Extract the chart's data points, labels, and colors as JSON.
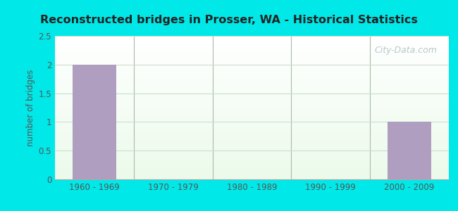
{
  "title": "Reconstructed bridges in Prosser, WA - Historical Statistics",
  "categories": [
    "1960 - 1969",
    "1970 - 1979",
    "1980 - 1989",
    "1990 - 1999",
    "2000 - 2009"
  ],
  "values": [
    2,
    0,
    0,
    0,
    1
  ],
  "bar_color": "#b09ec0",
  "ylabel": "number of bridges",
  "ylim": [
    0,
    2.5
  ],
  "yticks": [
    0,
    0.5,
    1,
    1.5,
    2,
    2.5
  ],
  "background_outer": "#00e8e8",
  "grid_color": "#ccddcc",
  "title_color": "#222222",
  "watermark": "City-Data.com",
  "watermark_color": "#b0c4c4",
  "tick_color": "#555555",
  "separator_color": "#aabbaa"
}
